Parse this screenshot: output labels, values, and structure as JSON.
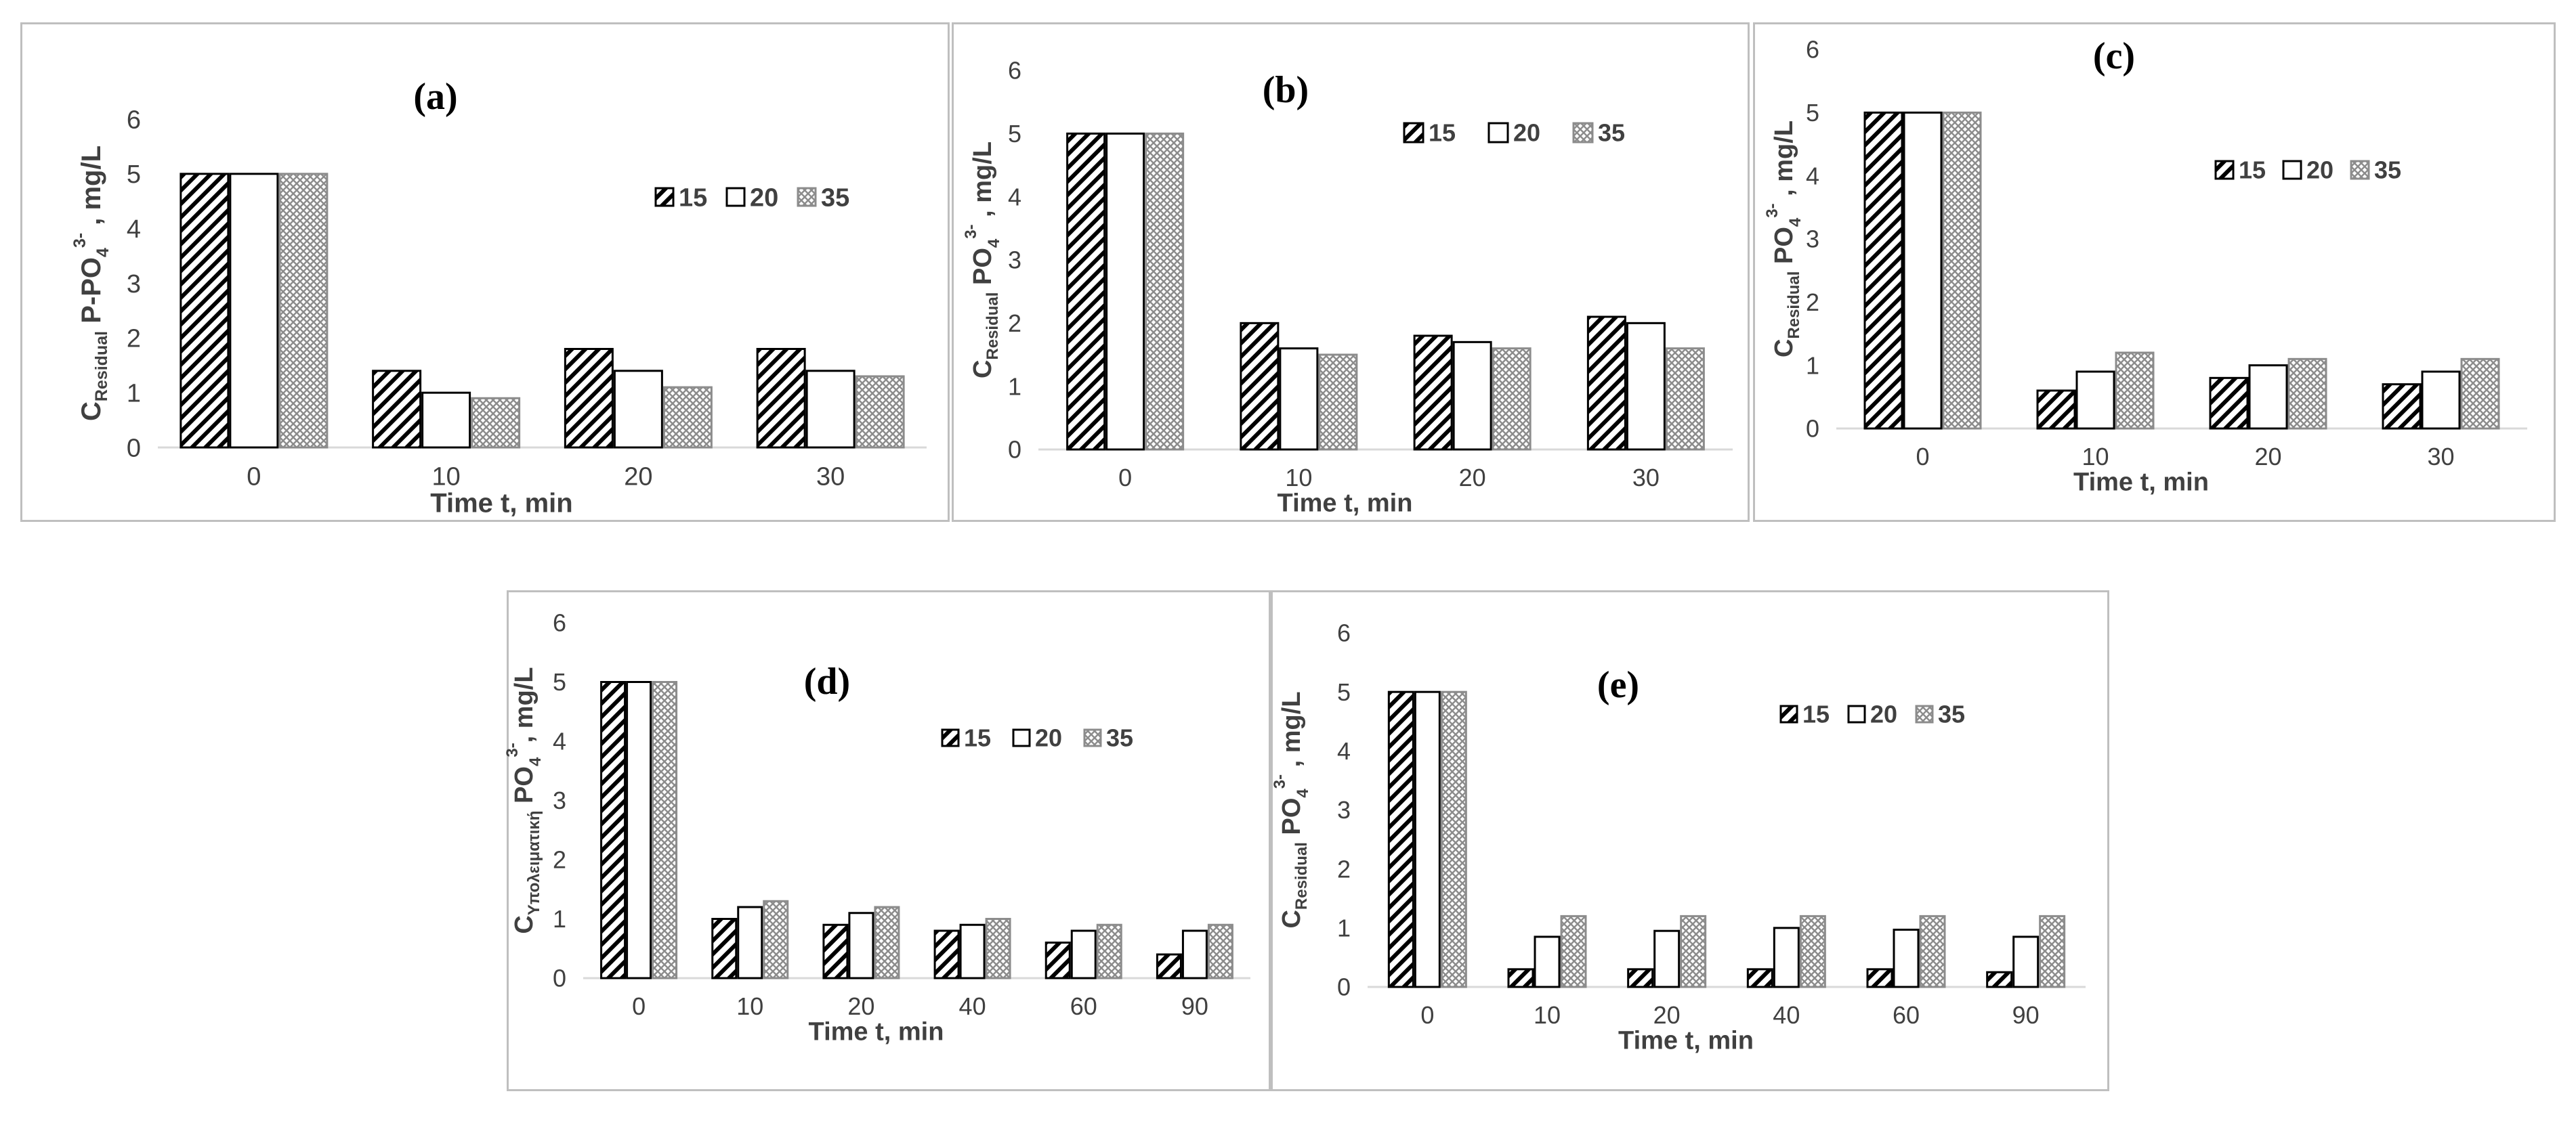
{
  "colors": {
    "background": "#ffffff",
    "border": "#bfbfbf",
    "axis": "#d9d9d9",
    "text": "#404040",
    "bar_stroke": "#000000"
  },
  "patterns": [
    "diagonal-hatch",
    "solid-white",
    "crosshatch-gray"
  ],
  "chart_data": [
    {
      "type": "bar",
      "panel_label": "(a)",
      "categories": [
        "0",
        "10",
        "20",
        "30"
      ],
      "series": [
        {
          "name": "15",
          "values": [
            5,
            1.4,
            1.8,
            1.8
          ]
        },
        {
          "name": "20",
          "values": [
            5,
            1.0,
            1.4,
            1.4
          ]
        },
        {
          "name": "35",
          "values": [
            5,
            0.9,
            1.1,
            1.3
          ]
        }
      ],
      "xlabel": "Time t, min",
      "ylabel": {
        "c": "C",
        "sub": "Residual",
        "mid": " P-PO",
        "sub2": "4",
        "sup": "3-",
        "tail": " , mg/L"
      },
      "ylim": [
        0,
        6
      ],
      "yticks": [
        "0",
        "1",
        "2",
        "3",
        "4",
        "5",
        "6"
      ],
      "legend_position": "top-right",
      "grid": false
    },
    {
      "type": "bar",
      "panel_label": "(b)",
      "categories": [
        "0",
        "10",
        "20",
        "30"
      ],
      "series": [
        {
          "name": "15",
          "values": [
            5,
            2.0,
            1.8,
            2.1
          ]
        },
        {
          "name": "20",
          "values": [
            5,
            1.6,
            1.7,
            2.0
          ]
        },
        {
          "name": "35",
          "values": [
            5,
            1.5,
            1.6,
            1.6
          ]
        }
      ],
      "xlabel": "Time t, min",
      "ylabel": {
        "c": "C",
        "sub": "Residual",
        "mid": " PO",
        "sub2": "4",
        "sup": "3-",
        "tail": " , mg/L"
      },
      "ylim": [
        0,
        6
      ],
      "yticks": [
        "0",
        "1",
        "2",
        "3",
        "4",
        "5",
        "6"
      ],
      "legend_position": "top-right",
      "grid": false
    },
    {
      "type": "bar",
      "panel_label": "(c)",
      "categories": [
        "0",
        "10",
        "20",
        "30"
      ],
      "series": [
        {
          "name": "15",
          "values": [
            5,
            0.6,
            0.8,
            0.7
          ]
        },
        {
          "name": "20",
          "values": [
            5,
            0.9,
            1.0,
            0.9
          ]
        },
        {
          "name": "35",
          "values": [
            5,
            1.2,
            1.1,
            1.1
          ]
        }
      ],
      "xlabel": "Time t, min",
      "ylabel": {
        "c": "C",
        "sub": "Residual",
        "mid": " PO",
        "sub2": "4",
        "sup": "3-",
        "tail": " , mg/L"
      },
      "ylim": [
        0,
        6
      ],
      "yticks": [
        "0",
        "1",
        "2",
        "3",
        "4",
        "5",
        "6"
      ],
      "legend_position": "top-right",
      "grid": false
    },
    {
      "type": "bar",
      "panel_label": "(d)",
      "categories": [
        "0",
        "10",
        "20",
        "40",
        "60",
        "90"
      ],
      "series": [
        {
          "name": "15",
          "values": [
            5,
            1.0,
            0.9,
            0.8,
            0.6,
            0.4
          ]
        },
        {
          "name": "20",
          "values": [
            5,
            1.2,
            1.1,
            0.9,
            0.8,
            0.8
          ]
        },
        {
          "name": "35",
          "values": [
            5,
            1.3,
            1.2,
            1.0,
            0.9,
            0.9
          ]
        }
      ],
      "xlabel": "Time t, min",
      "ylabel": {
        "c": "C",
        "sub": "Υπολειματική",
        "mid": " PO",
        "sub2": "4",
        "sup": "3-",
        "tail": ", mg/L"
      },
      "ylim": [
        0,
        6
      ],
      "yticks": [
        "0",
        "1",
        "2",
        "3",
        "4",
        "5",
        "6"
      ],
      "legend_position": "top-right",
      "grid": false
    },
    {
      "type": "bar",
      "panel_label": "(e)",
      "categories": [
        "0",
        "10",
        "20",
        "40",
        "60",
        "90"
      ],
      "series": [
        {
          "name": "15",
          "values": [
            5,
            0.3,
            0.3,
            0.3,
            0.3,
            0.25
          ]
        },
        {
          "name": "20",
          "values": [
            5,
            0.85,
            0.95,
            1.0,
            0.97,
            0.85
          ]
        },
        {
          "name": "35",
          "values": [
            5,
            1.2,
            1.2,
            1.2,
            1.2,
            1.2
          ]
        }
      ],
      "xlabel": "Time t, min",
      "ylabel": {
        "c": "C",
        "sub": "Residual",
        "mid": " PO",
        "sub2": "4",
        "sup": "3-",
        "tail": " , mg/L"
      },
      "ylim": [
        0,
        6
      ],
      "yticks": [
        "0",
        "1",
        "2",
        "3",
        "4",
        "5",
        "6"
      ],
      "legend_position": "top-right",
      "grid": false
    }
  ]
}
